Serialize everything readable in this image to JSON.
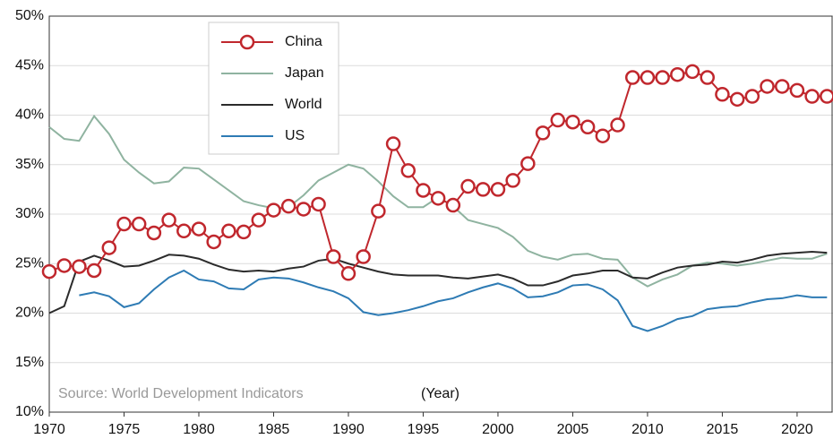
{
  "chart_data": {
    "type": "line",
    "x": [
      1970,
      1971,
      1972,
      1973,
      1974,
      1975,
      1976,
      1977,
      1978,
      1979,
      1980,
      1981,
      1982,
      1983,
      1984,
      1985,
      1986,
      1987,
      1988,
      1989,
      1990,
      1991,
      1992,
      1993,
      1994,
      1995,
      1996,
      1997,
      1998,
      1999,
      2000,
      2001,
      2002,
      2003,
      2004,
      2005,
      2006,
      2007,
      2008,
      2009,
      2010,
      2011,
      2012,
      2013,
      2014,
      2015,
      2016,
      2017,
      2018,
      2019,
      2020,
      2021,
      2022
    ],
    "series": [
      {
        "name": "China",
        "color": "#c0272d",
        "marker": "circle",
        "values": [
          24.2,
          24.8,
          24.7,
          24.3,
          26.6,
          29.0,
          29.0,
          28.1,
          29.4,
          28.3,
          28.5,
          27.2,
          28.3,
          28.2,
          29.4,
          30.4,
          30.8,
          30.5,
          31.0,
          25.7,
          24.0,
          25.7,
          30.3,
          37.1,
          34.4,
          32.4,
          31.6,
          30.9,
          32.8,
          32.5,
          32.5,
          33.4,
          35.1,
          38.2,
          39.5,
          39.3,
          38.8,
          37.9,
          39.0,
          43.8,
          43.8,
          43.8,
          44.1,
          44.4,
          43.8,
          42.1,
          41.6,
          41.9,
          42.9,
          42.9,
          42.5,
          41.9,
          41.9
        ]
      },
      {
        "name": "Japan",
        "color": "#8fb3a0",
        "values": [
          38.8,
          37.6,
          37.4,
          39.9,
          38.1,
          35.5,
          34.2,
          33.1,
          33.3,
          34.7,
          34.6,
          33.5,
          32.4,
          31.3,
          30.9,
          30.6,
          30.7,
          31.9,
          33.4,
          34.2,
          35.0,
          34.6,
          33.3,
          31.8,
          30.7,
          30.7,
          31.7,
          30.8,
          29.4,
          29.0,
          28.6,
          27.7,
          26.3,
          25.7,
          25.4,
          25.9,
          26.0,
          25.5,
          25.4,
          23.6,
          22.7,
          23.4,
          23.9,
          24.8,
          25.1,
          25.0,
          24.8,
          25.0,
          25.3,
          25.6,
          25.5,
          25.5,
          26.0
        ]
      },
      {
        "name": "World",
        "color": "#2b2b2b",
        "values": [
          20.0,
          20.7,
          25.2,
          25.8,
          25.3,
          24.7,
          24.8,
          25.3,
          25.9,
          25.8,
          25.5,
          24.9,
          24.4,
          24.2,
          24.3,
          24.2,
          24.5,
          24.7,
          25.3,
          25.5,
          25.0,
          24.6,
          24.2,
          23.9,
          23.8,
          23.8,
          23.8,
          23.6,
          23.5,
          23.7,
          23.9,
          23.5,
          22.8,
          22.8,
          23.2,
          23.8,
          24.0,
          24.3,
          24.3,
          23.6,
          23.5,
          24.1,
          24.6,
          24.8,
          24.9,
          25.2,
          25.1,
          25.4,
          25.8,
          26.0,
          26.1,
          26.2,
          26.1
        ]
      },
      {
        "name": "US",
        "color": "#2e7bb4",
        "values": [
          null,
          null,
          21.8,
          22.1,
          21.7,
          20.6,
          21.0,
          22.4,
          23.6,
          24.3,
          23.4,
          23.2,
          22.5,
          22.4,
          23.4,
          23.6,
          23.5,
          23.1,
          22.6,
          22.2,
          21.5,
          20.1,
          19.8,
          20.0,
          20.3,
          20.7,
          21.2,
          21.5,
          22.1,
          22.6,
          23.0,
          22.5,
          21.6,
          21.7,
          22.1,
          22.8,
          22.9,
          22.4,
          21.3,
          18.7,
          18.2,
          18.7,
          19.4,
          19.7,
          20.4,
          20.6,
          20.7,
          21.1,
          21.4,
          21.5,
          21.8,
          21.6,
          21.6
        ]
      }
    ],
    "xlim": [
      1970,
      2022.4
    ],
    "xticks": [
      1970,
      1975,
      1980,
      1985,
      1990,
      1995,
      2000,
      2005,
      2010,
      2015,
      2020
    ],
    "ylim": [
      10,
      50
    ],
    "yticks": [
      {
        "value": 10,
        "label": "10%"
      },
      {
        "value": 15,
        "label": "15%"
      },
      {
        "value": 20,
        "label": "20%"
      },
      {
        "value": 25,
        "label": "25%"
      },
      {
        "value": 30,
        "label": "30%"
      },
      {
        "value": 35,
        "label": "35%"
      },
      {
        "value": 40,
        "label": "40%"
      },
      {
        "value": 45,
        "label": "45%"
      },
      {
        "value": 50,
        "label": "50%"
      }
    ],
    "grid": true,
    "legend": "upper-left",
    "source": "Source: World Development Indicators",
    "xlabel": "(Year)"
  }
}
